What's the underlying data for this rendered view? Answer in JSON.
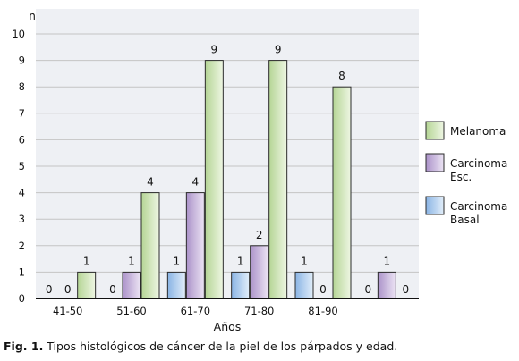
{
  "chart_data": {
    "type": "bar",
    "y_axis_label": "n",
    "xlabel": "Años",
    "ylim": [
      0,
      10
    ],
    "y_ticks": [
      0,
      1,
      2,
      3,
      4,
      5,
      6,
      7,
      8,
      9,
      10
    ],
    "grid": true,
    "legend_position": "right",
    "categories": [
      "41-50",
      "51-60",
      "61-70",
      "71-80",
      "81-90",
      ""
    ],
    "series": [
      {
        "name": "Carcinoma Basal",
        "legend_lines": [
          "Carcinoma",
          "Basal"
        ],
        "color": "#a9c8ec",
        "values": [
          0,
          0,
          1,
          1,
          1,
          0
        ]
      },
      {
        "name": "Carcinoma Esc.",
        "legend_lines": [
          "Carcinoma",
          "Esc."
        ],
        "color": "#c6b3db",
        "values": [
          0,
          1,
          4,
          2,
          0,
          1
        ]
      },
      {
        "name": "Melanoma",
        "legend_lines": [
          "Melanoma"
        ],
        "color": "#cfe3b4",
        "values": [
          1,
          4,
          9,
          9,
          8,
          0
        ]
      }
    ],
    "legend_order": [
      2,
      1,
      0
    ]
  },
  "caption": {
    "prefix": "Fig. 1.",
    "text": " Tipos histológicos de cáncer de la piel de los párpados y edad."
  }
}
